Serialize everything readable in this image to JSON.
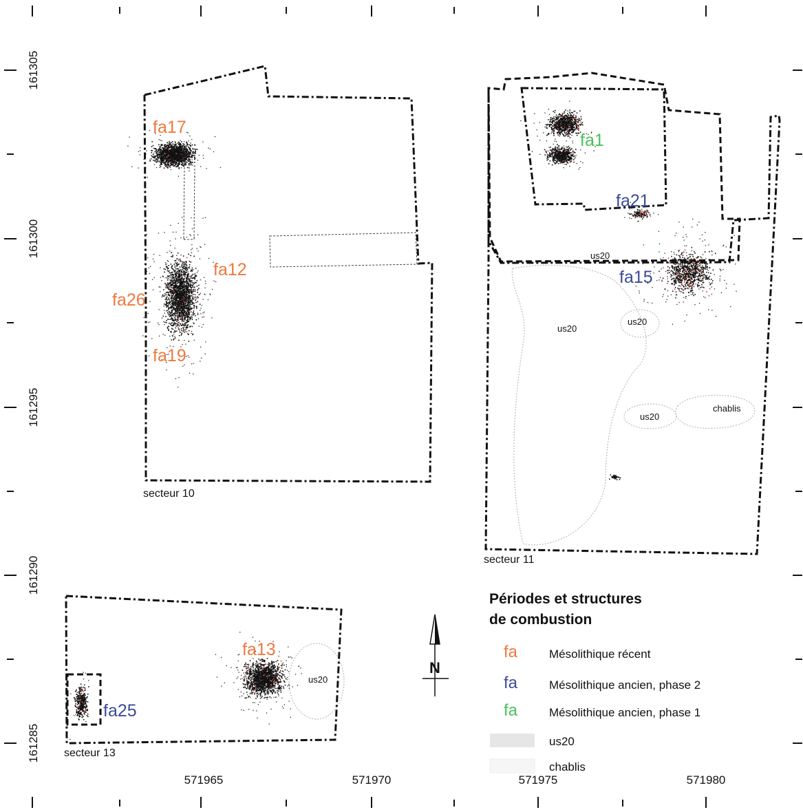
{
  "axes": {
    "x_labels": [
      "571965",
      "571970",
      "571975",
      "571980"
    ],
    "y_labels": [
      "161305",
      "161300",
      "161295",
      "161290",
      "161285"
    ]
  },
  "sectors": {
    "s10": "secteur 10",
    "s11": "secteur 11",
    "s13": "secteur 13"
  },
  "features": {
    "fa17": "fa17",
    "fa12": "fa12",
    "fa26": "fa26",
    "fa19": "fa19",
    "fa1": "fa1",
    "fa21": "fa21",
    "fa15": "fa15",
    "fa13": "fa13",
    "fa25": "fa25"
  },
  "unit_labels": {
    "us20": "us20",
    "chablis": "chablis"
  },
  "north": "N",
  "legend": {
    "title_line1": "Périodes et structures",
    "title_line2": "de combustion",
    "symbol": "fa",
    "items": [
      {
        "label": "Mésolithique récent",
        "color": "#f0783c"
      },
      {
        "label": "Mésolithique ancien, phase 2",
        "color": "#3d4a9a"
      },
      {
        "label": "Mésolithique ancien, phase 1",
        "color": "#49c15a"
      }
    ],
    "us20": "us20",
    "chablis": "chablis"
  },
  "colors": {
    "recent": "#f0783c",
    "ancien2": "#3d4a9a",
    "ancien1": "#49c15a"
  }
}
